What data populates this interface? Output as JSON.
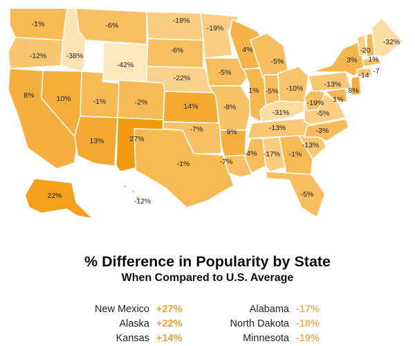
{
  "title": "% Difference in Popularity by State",
  "subtitle": "When Compared to U.S. Average",
  "colors": {
    "scale_low": "#fde8bd",
    "scale_high": "#f29a0e",
    "positive_text": "#f0a030",
    "negative_text": "#f2b25a",
    "border": "#ffffff"
  },
  "states": [
    {
      "abbr": "WA",
      "value": -1,
      "label": "-1%"
    },
    {
      "abbr": "OR",
      "value": -12,
      "label": "-12%"
    },
    {
      "abbr": "CA",
      "value": 8,
      "label": "8%"
    },
    {
      "abbr": "NV",
      "value": 10,
      "label": "10%"
    },
    {
      "abbr": "ID",
      "value": -38,
      "label": "-38%"
    },
    {
      "abbr": "MT",
      "value": -6,
      "label": "-6%"
    },
    {
      "abbr": "WY",
      "value": -42,
      "label": "-42%"
    },
    {
      "abbr": "UT",
      "value": -1,
      "label": "-1%"
    },
    {
      "abbr": "AZ",
      "value": 13,
      "label": "13%"
    },
    {
      "abbr": "CO",
      "value": -2,
      "label": "-2%"
    },
    {
      "abbr": "NM",
      "value": 27,
      "label": "27%"
    },
    {
      "abbr": "ND",
      "value": -18,
      "label": "-18%"
    },
    {
      "abbr": "SD",
      "value": -6,
      "label": "-6%"
    },
    {
      "abbr": "NE",
      "value": -22,
      "label": "-22%"
    },
    {
      "abbr": "KS",
      "value": 14,
      "label": "14%"
    },
    {
      "abbr": "OK",
      "value": -7,
      "label": "-7%"
    },
    {
      "abbr": "TX",
      "value": -1,
      "label": "-1%"
    },
    {
      "abbr": "MN",
      "value": -19,
      "label": "-19%"
    },
    {
      "abbr": "IA",
      "value": -5,
      "label": "-5%"
    },
    {
      "abbr": "MO",
      "value": -8,
      "label": "-8%"
    },
    {
      "abbr": "AR",
      "value": 9,
      "label": "9%"
    },
    {
      "abbr": "LA",
      "value": -7,
      "label": "-7%"
    },
    {
      "abbr": "WI",
      "value": 4,
      "label": "4%"
    },
    {
      "abbr": "IL",
      "value": 1,
      "label": "1%"
    },
    {
      "abbr": "MI",
      "value": -5,
      "label": "-5%"
    },
    {
      "abbr": "IN",
      "value": -5,
      "label": "-5%"
    },
    {
      "abbr": "OH",
      "value": -10,
      "label": "-10%"
    },
    {
      "abbr": "KY",
      "value": -31,
      "label": "-31%"
    },
    {
      "abbr": "TN",
      "value": -13,
      "label": "-13%"
    },
    {
      "abbr": "MS",
      "value": -4,
      "label": "-4%"
    },
    {
      "abbr": "AL",
      "value": -17,
      "label": "-17%"
    },
    {
      "abbr": "GA",
      "value": -1,
      "label": "-1%"
    },
    {
      "abbr": "FL",
      "value": -5,
      "label": "-5%"
    },
    {
      "abbr": "SC",
      "value": -13,
      "label": "-13%"
    },
    {
      "abbr": "NC",
      "value": -3,
      "label": "-3%"
    },
    {
      "abbr": "VA",
      "value": -19,
      "label": "-19%"
    },
    {
      "abbr": "WV",
      "value": -5,
      "label": "-5%"
    },
    {
      "abbr": "PA",
      "value": -13,
      "label": "-13%"
    },
    {
      "abbr": "NY",
      "value": 3,
      "label": "3%"
    },
    {
      "abbr": "VT",
      "value": -20,
      "label": "-20"
    },
    {
      "abbr": "NH",
      "value": 1,
      "label": "1%"
    },
    {
      "abbr": "ME",
      "value": -32,
      "label": "-32%"
    },
    {
      "abbr": "MA",
      "value": -7,
      "label": "-7"
    },
    {
      "abbr": "CT",
      "value": -14,
      "label": "-14"
    },
    {
      "abbr": "NJ",
      "value": 8,
      "label": "8%"
    },
    {
      "abbr": "MD",
      "value": 1,
      "label": "1%"
    },
    {
      "abbr": "AK",
      "value": 22,
      "label": "22%"
    },
    {
      "abbr": "HI",
      "value": -12,
      "label": "-12%"
    }
  ],
  "legend": {
    "left": [
      {
        "name": "New Mexico",
        "value": "+27%"
      },
      {
        "name": "Alaska",
        "value": "+22%"
      },
      {
        "name": "Kansas",
        "value": "+14%"
      }
    ],
    "right": [
      {
        "name": "Alabama",
        "value": "-17%"
      },
      {
        "name": "North Dakota",
        "value": "-18%"
      },
      {
        "name": "Minnesota",
        "value": "-19%"
      }
    ]
  }
}
